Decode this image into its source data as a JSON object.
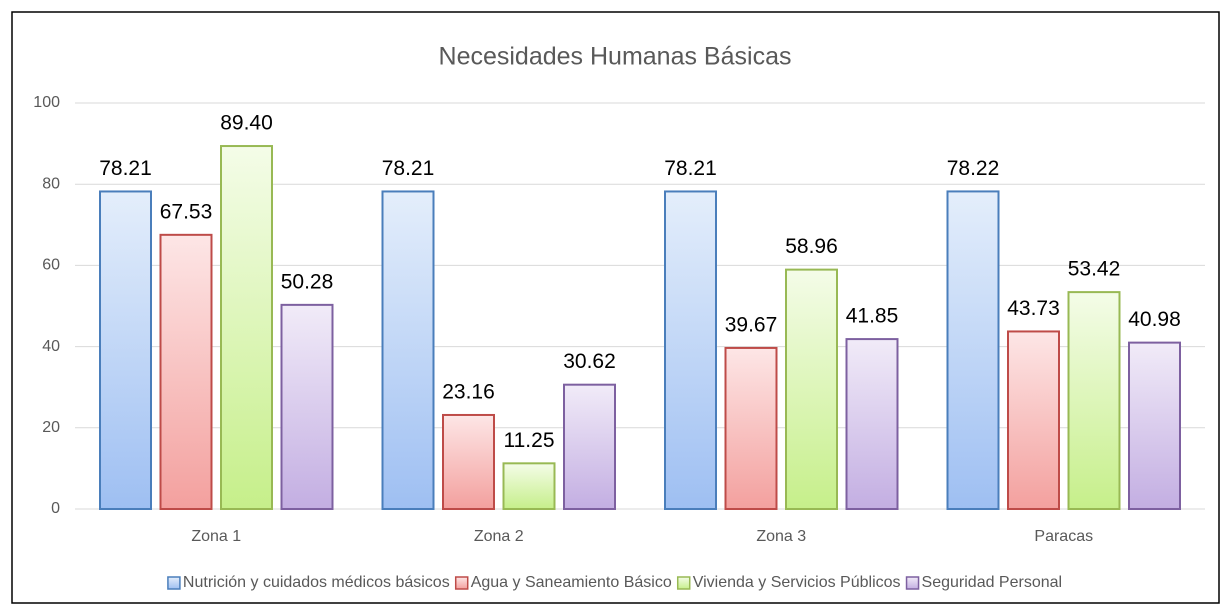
{
  "chart_data": {
    "type": "bar",
    "title": "Necesidades Humanas Básicas",
    "categories": [
      "Zona 1",
      "Zona 2",
      "Zona 3",
      "Paracas"
    ],
    "series": [
      {
        "name": "Nutrición y cuidados médicos básicos",
        "color": "#4a7ebb",
        "gradient": [
          "#e4eefb",
          "#9ebff2"
        ],
        "values": [
          78.21,
          78.21,
          78.21,
          78.22
        ],
        "value_labels": [
          "78.21",
          "78.21",
          "78.21",
          "78.22"
        ]
      },
      {
        "name": "Agua y Saneamiento Básico",
        "color": "#be4b48",
        "gradient": [
          "#fde6e6",
          "#f3a09e"
        ],
        "values": [
          67.53,
          23.16,
          39.67,
          43.73
        ],
        "value_labels": [
          "67.53",
          "23.16",
          "39.67",
          "43.73"
        ]
      },
      {
        "name": "Vivienda y Servicios Públicos",
        "color": "#98b954",
        "gradient": [
          "#f4fce8",
          "#c6ef8a"
        ],
        "values": [
          89.4,
          11.25,
          58.96,
          53.42
        ],
        "value_labels": [
          "89.40",
          "11.25",
          "58.96",
          "53.42"
        ]
      },
      {
        "name": "Seguridad Personal",
        "color": "#7d60a0",
        "gradient": [
          "#f1ebf8",
          "#c3aee2"
        ],
        "values": [
          50.28,
          30.62,
          41.85,
          40.98
        ],
        "value_labels": [
          "50.28",
          "30.62",
          "41.85",
          "40.98"
        ]
      }
    ],
    "ylim": [
      0,
      100
    ],
    "yticks": [
      0,
      20,
      40,
      60,
      80,
      100
    ],
    "grid": true,
    "legend": "bottom"
  }
}
